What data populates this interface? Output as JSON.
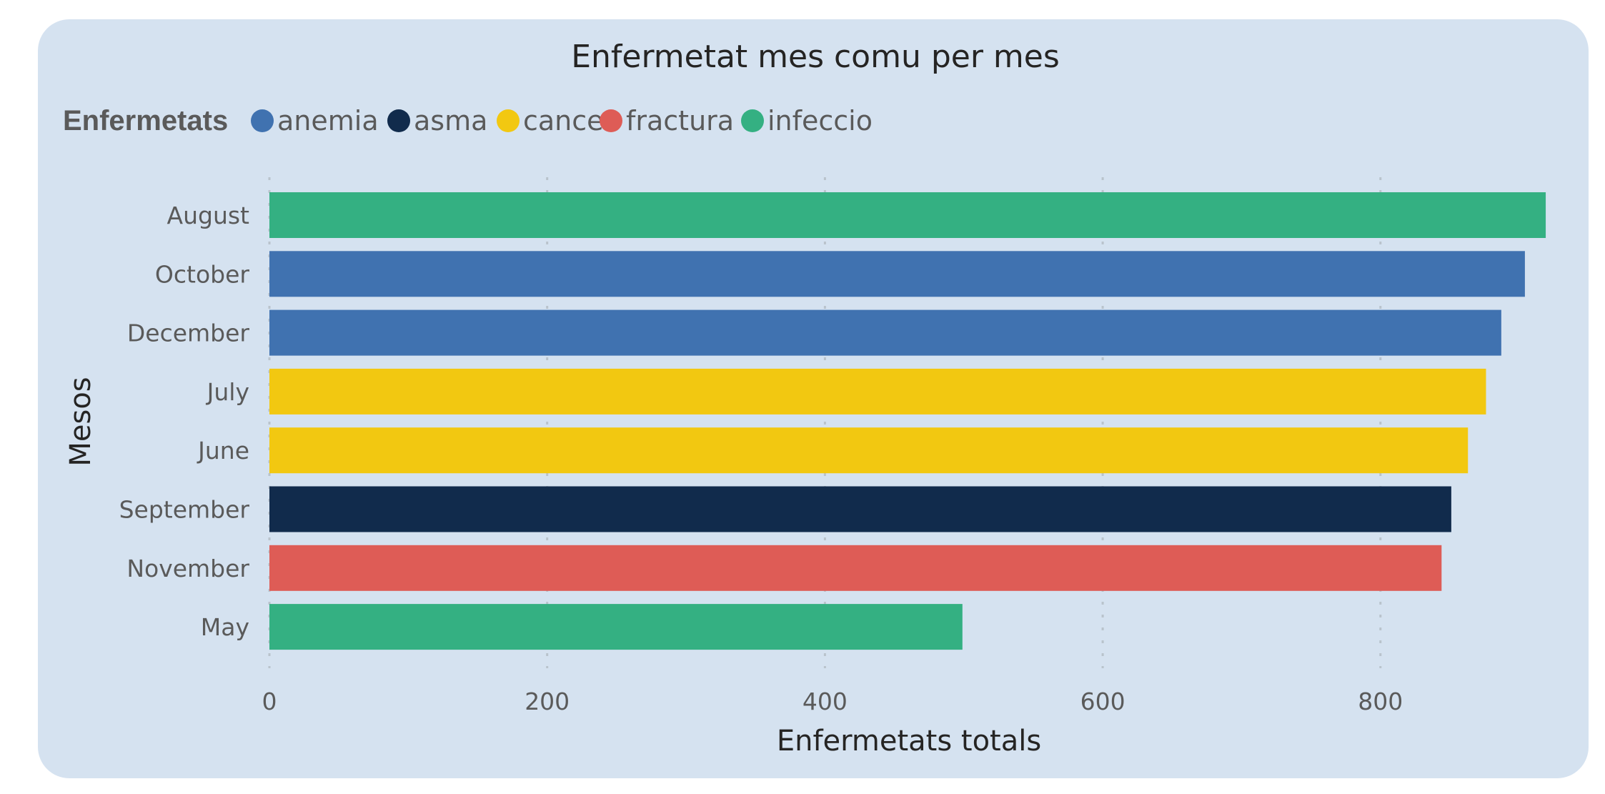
{
  "chart_data": {
    "type": "bar",
    "orientation": "horizontal",
    "title": "Enfermetat mes comu per mes",
    "xlabel": "Enfermetats totals",
    "ylabel": "Mesos",
    "legend_title": "Enfermetats",
    "legend_position": "top-left",
    "legend": [
      {
        "name": "anemia",
        "color": "#4072b0"
      },
      {
        "name": "asma",
        "color": "#112b4c"
      },
      {
        "name": "cancer",
        "color": "#f2c811"
      },
      {
        "name": "fractura",
        "color": "#de5c56"
      },
      {
        "name": "infeccio",
        "color": "#34b082"
      }
    ],
    "categories": [
      "August",
      "October",
      "December",
      "July",
      "June",
      "September",
      "November",
      "May"
    ],
    "values": [
      919,
      904,
      887,
      876,
      863,
      851,
      844,
      499
    ],
    "bar_series": [
      "infeccio",
      "anemia",
      "anemia",
      "cancer",
      "cancer",
      "asma",
      "fractura",
      "infeccio"
    ],
    "xlim": [
      0,
      920
    ],
    "xticks": [
      0,
      200,
      400,
      600,
      800
    ],
    "grid": true
  }
}
